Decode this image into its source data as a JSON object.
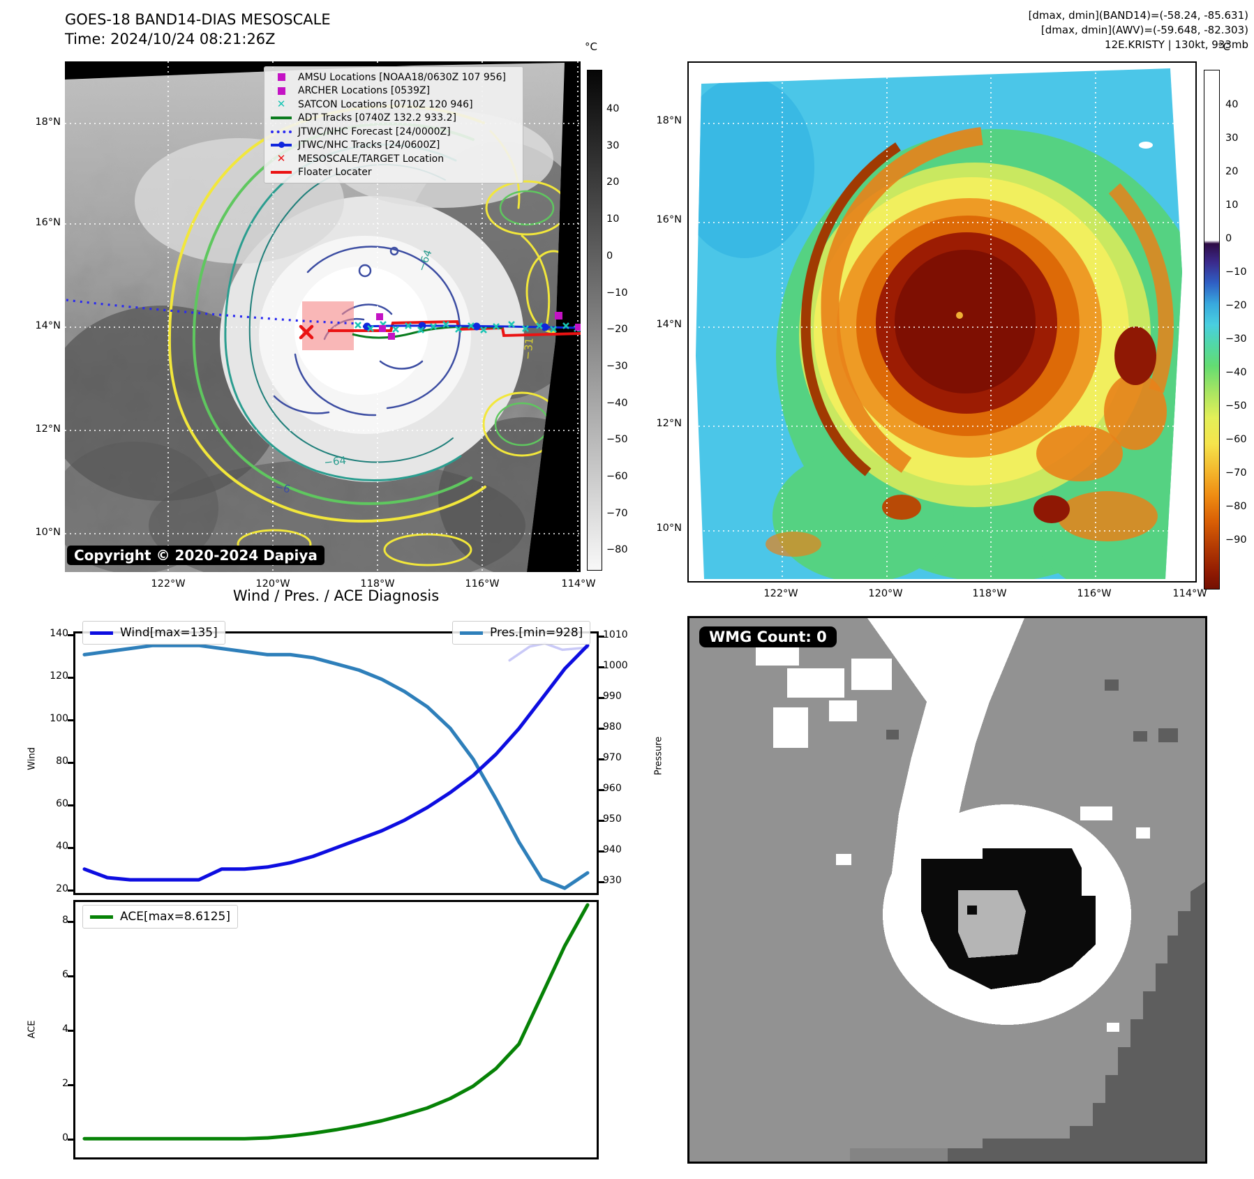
{
  "panel1": {
    "title": "GOES-18 BAND14-DIAS MESOSCALE",
    "subtitle": "Time: 2024/10/24 08:21:26Z",
    "copyright": "Copyright © 2020-2024 Dapiya",
    "legend": [
      {
        "marker": "square",
        "color": "#c413c4",
        "label": "AMSU Locations [NOAA18/0630Z 107 956]"
      },
      {
        "marker": "square",
        "color": "#c413c4",
        "label": "ARCHER Locations [0539Z]"
      },
      {
        "marker": "x",
        "color": "#19c5b4",
        "label": "SATCON Locations [0710Z 120 946]"
      },
      {
        "marker": "line",
        "color": "#0b7c1f",
        "label": "ADT Tracks [0740Z 132.2 933.2]"
      },
      {
        "marker": "dotted",
        "color": "#2a2af0",
        "label": "JTWC/NHC Forecast [24/0000Z]"
      },
      {
        "marker": "line-dot",
        "color": "#1026dd",
        "label": "JTWC/NHC Tracks [24/0600Z]"
      },
      {
        "marker": "x",
        "color": "#ea1313",
        "label": "MESOSCALE/TARGET Location"
      },
      {
        "marker": "line",
        "color": "#ea1313",
        "label": "Floater Locater"
      }
    ],
    "lat_ticks": [
      "18°N",
      "16°N",
      "14°N",
      "12°N",
      "10°N"
    ],
    "lon_ticks": [
      "122°W",
      "120°W",
      "118°W",
      "116°W",
      "114°W"
    ],
    "colorbar": {
      "unit": "°C",
      "ticks": [
        "40",
        "30",
        "20",
        "10",
        "0",
        "−10",
        "−20",
        "−30",
        "−40",
        "−50",
        "−60",
        "−70",
        "−80"
      ]
    },
    "contour_labels": {
      "a": "−64",
      "b": "−64",
      "c": "−31",
      "d": "−6"
    }
  },
  "panel2": {
    "header_line1": "[dmax, dmin](BAND14)=(-58.24, -85.631)",
    "header_line2": "[dmax, dmin](AWV)=(-59.648, -82.303)",
    "header_line3": "12E.KRISTY | 130kt, 933mb",
    "lat_ticks": [
      "18°N",
      "16°N",
      "14°N",
      "12°N",
      "10°N"
    ],
    "lon_ticks": [
      "122°W",
      "120°W",
      "118°W",
      "116°W",
      "114°W"
    ],
    "colorbar": {
      "unit": "°C",
      "ticks": [
        "40",
        "30",
        "20",
        "10",
        "0",
        "−10",
        "−20",
        "−30",
        "−40",
        "−50",
        "−60",
        "−70",
        "−80",
        "−90"
      ]
    }
  },
  "charts": {
    "title": "Wind / Pres. / ACE Diagnosis"
  },
  "panel4": {
    "label": "WMG Count: 0"
  },
  "colors": {
    "wind": "#0d0de0",
    "pressure": "#2e7fba",
    "ace": "#068206",
    "wind_trend": "#c9c9f7",
    "floater": "#ea1313",
    "jtwc_track": "#1026dd",
    "forecast": "#2a2af0",
    "adt": "#0b7c1f",
    "satcon": "#19c5b4",
    "amsu": "#c413c4",
    "target_box": "#f58a8a"
  },
  "chart_data": [
    {
      "type": "line",
      "title": "Wind / Pres. / ACE Diagnosis",
      "x_mode": "evenly-spaced-time-steps",
      "y_left": {
        "label": "Wind",
        "ticks": [
          140,
          120,
          100,
          80,
          60,
          40,
          20
        ],
        "range": [
          20,
          140
        ]
      },
      "y_right": {
        "label": "Pressure",
        "ticks": [
          1010,
          1000,
          990,
          980,
          970,
          960,
          950,
          940,
          930
        ],
        "range": [
          926,
          1011
        ]
      },
      "series": [
        {
          "name": "Wind[max=135]",
          "color": "#0d0de0",
          "axis": "left",
          "values": [
            30,
            26,
            25,
            25,
            25,
            25,
            30,
            30,
            31,
            33,
            36,
            40,
            44,
            48,
            53,
            59,
            66,
            74,
            84,
            96,
            110,
            124,
            135
          ]
        },
        {
          "name": "Pres.[min=928]",
          "color": "#2e7fba",
          "axis": "right",
          "values": [
            1004,
            1005,
            1006,
            1007,
            1007,
            1007,
            1006,
            1005,
            1004,
            1004,
            1003,
            1001,
            999,
            996,
            992,
            987,
            980,
            970,
            957,
            943,
            931,
            928,
            933
          ]
        },
        {
          "name": "wind-trend",
          "color": "#c9c9f7",
          "axis": "left",
          "x": [
            0.845,
            0.885,
            0.915,
            0.95,
            1.0
          ],
          "values": [
            128,
            134.5,
            136,
            133,
            134
          ]
        }
      ]
    },
    {
      "type": "line",
      "y_left": {
        "label": "ACE",
        "ticks": [
          8,
          6,
          4,
          2,
          0
        ],
        "range": [
          -0.3,
          9
        ]
      },
      "series": [
        {
          "name": "ACE[max=8.6125]",
          "color": "#068206",
          "axis": "left",
          "values": [
            0.02,
            0.02,
            0.02,
            0.02,
            0.02,
            0.02,
            0.02,
            0.02,
            0.05,
            0.12,
            0.22,
            0.35,
            0.5,
            0.68,
            0.9,
            1.15,
            1.5,
            1.95,
            2.6,
            3.5,
            5.3,
            7.1,
            8.6125
          ]
        }
      ]
    }
  ]
}
